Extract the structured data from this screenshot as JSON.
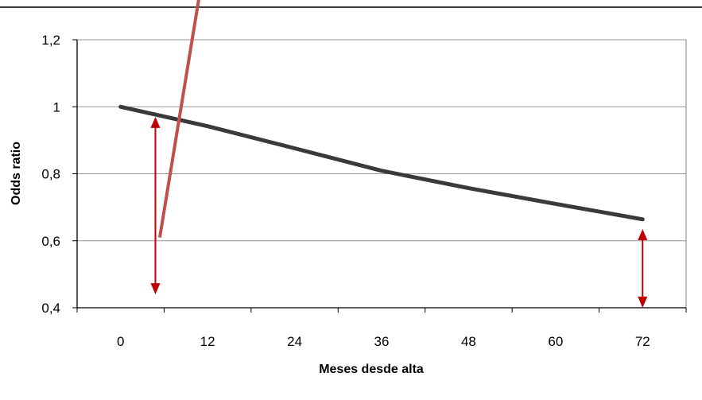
{
  "chart_data": {
    "type": "line",
    "title": "",
    "xlabel": "Meses desde alta",
    "ylabel": "Odds ratio",
    "x_ticks": [
      "0",
      "12",
      "24",
      "36",
      "48",
      "60",
      "72"
    ],
    "y_ticks": [
      "0,4",
      "0,6",
      "0,8",
      "1",
      "1,2"
    ],
    "xlim": [
      -6,
      78
    ],
    "ylim": [
      0.4,
      1.2
    ],
    "grid": "horizontal",
    "legend": "none",
    "series": [
      {
        "color": "#3a3a3a",
        "x": [
          0,
          12,
          24,
          36,
          48,
          60,
          72
        ],
        "y": [
          1.0,
          0.942,
          0.876,
          0.809,
          0.757,
          0.71,
          0.664
        ]
      }
    ],
    "annotations": {
      "red_line": {
        "color": "#c0504d",
        "from": [
          5.4,
          0.61
        ],
        "to": [
          11,
          1.35
        ]
      },
      "arrows": [
        {
          "color": "#c00000",
          "x": 4.8,
          "y_from": 0.97,
          "y_to": 0.44
        },
        {
          "color": "#c00000",
          "x": 72,
          "y_from": 0.635,
          "y_to": 0.4
        }
      ]
    }
  }
}
